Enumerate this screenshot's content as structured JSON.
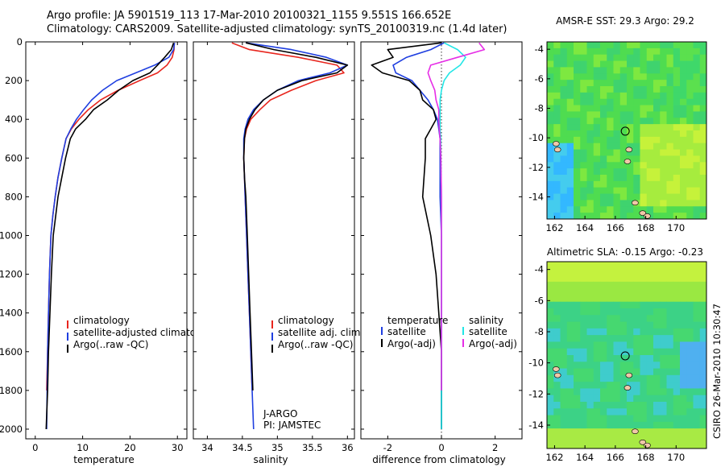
{
  "header": {
    "line1": "Argo profile: JA 5901519_113 17-Mar-2010 20100321_1155 9.551S 166.652E",
    "line2": "Climatology: CARS2009. Satellite-adjusted climatology: synTS_20100319.nc (1.4d later)"
  },
  "credit": "CSIRO 26-Mar-2010 10:30:47",
  "colors": {
    "climatology": "#e8261e",
    "satellite": "#1f3fe0",
    "argo": "#000000",
    "cyan": "#22e6e6",
    "magenta": "#e62ee6"
  },
  "chart_data": [
    {
      "type": "line",
      "id": "temperature",
      "xlabel": "temperature",
      "ylabel": "",
      "xlim": [
        -2,
        32
      ],
      "ylim": [
        2050,
        0
      ],
      "xticks": [
        0,
        10,
        20,
        30
      ],
      "yticks": [
        0,
        200,
        400,
        600,
        800,
        1000,
        1200,
        1400,
        1600,
        1800,
        2000
      ],
      "legend": [
        "climatology",
        "satellite-adjusted climatology",
        "Argo(..raw -QC)"
      ],
      "series": [
        {
          "name": "climatology",
          "color": "#e8261e",
          "x": [
            29.3,
            29.3,
            28.9,
            27.8,
            25.8,
            22.0,
            17.5,
            13.8,
            11.2,
            9.2,
            7.6,
            6.5,
            5.6,
            4.8,
            4.2,
            3.7,
            3.3,
            3.0,
            2.8,
            2.6,
            2.4
          ],
          "y": [
            5,
            40,
            80,
            120,
            160,
            200,
            250,
            300,
            350,
            400,
            450,
            500,
            600,
            700,
            800,
            900,
            1000,
            1200,
            1400,
            1600,
            1800
          ]
        },
        {
          "name": "satellite-adjusted climatology",
          "color": "#1f3fe0",
          "x": [
            29.4,
            29.2,
            28.2,
            25.2,
            21.2,
            17.2,
            14.2,
            11.9,
            10.2,
            8.7,
            7.5,
            6.5,
            5.6,
            4.8,
            4.2,
            3.7,
            3.3,
            3.0,
            2.8,
            2.6,
            2.5,
            2.4
          ],
          "y": [
            5,
            40,
            80,
            120,
            160,
            200,
            250,
            300,
            350,
            400,
            450,
            500,
            600,
            700,
            800,
            900,
            1000,
            1200,
            1400,
            1600,
            1800,
            2000
          ]
        },
        {
          "name": "Argo(..raw -QC)",
          "color": "#000000",
          "x": [
            29.2,
            28.7,
            27.3,
            25.8,
            24.2,
            20.6,
            17.6,
            15.2,
            12.3,
            10.6,
            8.5,
            7.4,
            6.4,
            5.6,
            4.8,
            4.3,
            3.8,
            3.4,
            3.1,
            2.8,
            2.6,
            2.45,
            2.3
          ],
          "y": [
            5,
            40,
            80,
            120,
            160,
            200,
            250,
            300,
            350,
            400,
            450,
            500,
            600,
            700,
            800,
            900,
            1000,
            1200,
            1400,
            1600,
            1800,
            1900,
            2000
          ]
        }
      ]
    },
    {
      "type": "line",
      "id": "salinity",
      "xlabel": "salinity",
      "xlim": [
        33.8,
        36.1
      ],
      "ylim": [
        2050,
        0
      ],
      "xticks": [
        34,
        34.5,
        35,
        35.5,
        36
      ],
      "legend": [
        "climatology",
        "satellite adj. clim.",
        "Argo(..raw -QC)"
      ],
      "annotation": [
        "J-ARGO",
        "PI: JAMSTEC"
      ],
      "series": [
        {
          "name": "climatology",
          "color": "#e8261e",
          "x": [
            34.35,
            34.6,
            35.3,
            35.85,
            35.95,
            35.55,
            35.2,
            34.9,
            34.75,
            34.62,
            34.56,
            34.53,
            34.52,
            34.53,
            34.54,
            34.56,
            34.58,
            34.6,
            34.62,
            34.64
          ],
          "y": [
            5,
            40,
            80,
            120,
            160,
            200,
            250,
            300,
            350,
            400,
            450,
            500,
            600,
            700,
            800,
            1000,
            1200,
            1400,
            1600,
            1800
          ]
        },
        {
          "name": "satellite adj. clim.",
          "color": "#1f3fe0",
          "x": [
            34.55,
            35.2,
            35.7,
            36.0,
            35.75,
            35.3,
            35.0,
            34.8,
            34.66,
            34.58,
            34.54,
            34.52,
            34.52,
            34.53,
            34.54,
            34.56,
            34.58,
            34.6,
            34.62,
            34.64,
            34.66
          ],
          "y": [
            5,
            40,
            80,
            120,
            160,
            200,
            250,
            300,
            350,
            400,
            450,
            500,
            600,
            700,
            800,
            1000,
            1200,
            1400,
            1600,
            1800,
            2000
          ]
        },
        {
          "name": "Argo(..raw -QC)",
          "color": "#000000",
          "x": [
            34.55,
            34.95,
            35.55,
            36.0,
            35.85,
            35.35,
            35.0,
            34.8,
            34.68,
            34.6,
            34.55,
            34.53,
            34.52,
            34.53,
            34.55,
            34.57,
            34.59,
            34.61,
            34.63,
            34.65
          ],
          "y": [
            5,
            40,
            80,
            120,
            160,
            200,
            250,
            300,
            350,
            400,
            450,
            500,
            600,
            700,
            800,
            1000,
            1200,
            1400,
            1600,
            1800
          ]
        }
      ]
    },
    {
      "type": "line",
      "id": "difference",
      "xlabel": "difference from climatology",
      "xlim": [
        -3,
        3
      ],
      "ylim": [
        2050,
        0
      ],
      "xticks": [
        -2,
        0,
        2
      ],
      "legend_left_title": "temperature",
      "legend_right_title": "salinity",
      "legend": [
        "satellite",
        "Argo(-adj)",
        "satellite",
        "Argo(-adj)"
      ],
      "series": [
        {
          "name": "temperature satellite",
          "color": "#1f3fe0",
          "x": [
            0.1,
            -0.4,
            -1.3,
            -1.8,
            -1.7,
            -1.1,
            -0.8,
            -0.5,
            -0.3,
            -0.15,
            -0.1,
            -0.05,
            -0.05,
            -0.05,
            0,
            0,
            0,
            0,
            0
          ],
          "y": [
            5,
            40,
            80,
            120,
            160,
            200,
            250,
            300,
            350,
            400,
            450,
            500,
            600,
            800,
            1000,
            1200,
            1400,
            1600,
            2000
          ]
        },
        {
          "name": "temperature Argo(-adj)",
          "color": "#000000",
          "x": [
            0,
            -2.0,
            -1.8,
            -2.6,
            -2.2,
            -1.2,
            -0.8,
            -0.7,
            -0.3,
            -0.2,
            -0.4,
            -0.6,
            -0.6,
            -0.7,
            -0.4,
            -0.2,
            -0.1,
            0,
            0
          ],
          "y": [
            5,
            40,
            80,
            120,
            160,
            200,
            250,
            300,
            350,
            400,
            450,
            500,
            600,
            800,
            1000,
            1200,
            1400,
            1600,
            2000
          ]
        },
        {
          "name": "salinity satellite",
          "color": "#22e6e6",
          "x": [
            0.1,
            0.6,
            0.9,
            0.7,
            0.3,
            0.1,
            0,
            -0.05,
            -0.05,
            -0.05,
            -0.05,
            -0.03,
            -0.02,
            0,
            0,
            0,
            0,
            0
          ],
          "y": [
            5,
            40,
            80,
            120,
            160,
            200,
            250,
            300,
            350,
            400,
            450,
            500,
            600,
            800,
            1000,
            1400,
            1800,
            2000
          ]
        },
        {
          "name": "salinity Argo(-adj)",
          "color": "#e62ee6",
          "x": [
            1.4,
            1.6,
            0.6,
            -0.4,
            -0.5,
            -0.4,
            -0.25,
            -0.2,
            -0.1,
            -0.1,
            -0.08,
            -0.05,
            -0.02,
            0,
            0,
            0,
            0
          ],
          "y": [
            5,
            40,
            80,
            120,
            160,
            200,
            250,
            300,
            350,
            400,
            450,
            500,
            600,
            800,
            1000,
            1400,
            1800
          ]
        }
      ]
    },
    {
      "type": "heatmap",
      "id": "sst-map",
      "title": "AMSR-E SST: 29.3 Argo: 29.2",
      "xlim": [
        161.5,
        172
      ],
      "ylim": [
        -15.5,
        -3.5
      ],
      "xticks": [
        162,
        164,
        166,
        168,
        170
      ],
      "yticks": [
        -4,
        -6,
        -8,
        -10,
        -12,
        -14
      ],
      "marker": {
        "lon": 166.652,
        "lat": -9.551
      }
    },
    {
      "type": "heatmap",
      "id": "sla-map",
      "title": "Altimetric SLA: -0.15 Argo: -0.23",
      "xlim": [
        161.5,
        172
      ],
      "ylim": [
        -15.5,
        -3.5
      ],
      "xticks": [
        162,
        164,
        166,
        168,
        170
      ],
      "yticks": [
        -4,
        -6,
        -8,
        -10,
        -12,
        -14
      ],
      "marker": {
        "lon": 166.652,
        "lat": -9.551
      }
    }
  ]
}
